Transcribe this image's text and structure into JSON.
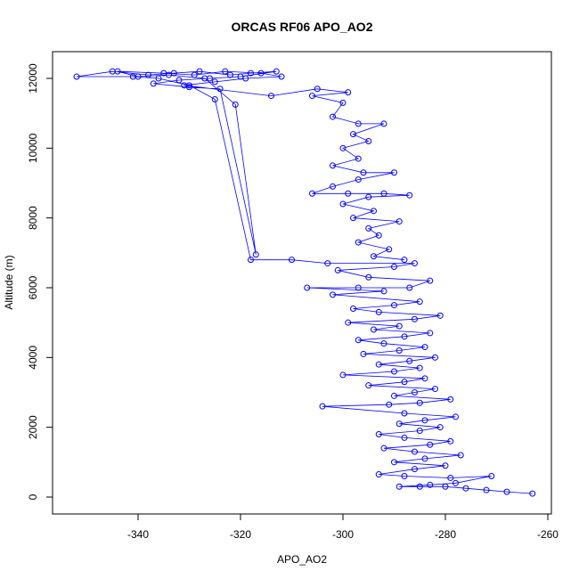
{
  "chart_data": {
    "type": "scatter",
    "mode": "points-and-lines",
    "title": "ORCAS RF06 APO_AO2",
    "x_label": "APO_AO2",
    "y_label": "Altitude (m)",
    "color": "#0000ff",
    "xlim": [
      -356.7,
      -259.3
    ],
    "ylim": [
      -485,
      12766
    ],
    "xticks": [
      -340,
      -320,
      -300,
      -280,
      -260
    ],
    "yticks": [
      0,
      2000,
      4000,
      6000,
      8000,
      10000,
      12000
    ],
    "x": [
      -263,
      -268,
      -272,
      -276,
      -280,
      -285,
      -289,
      -283,
      -278,
      -271,
      -279,
      -288,
      -293,
      -286,
      -280,
      -290,
      -284,
      -277,
      -286,
      -292,
      -283,
      -279,
      -288,
      -293,
      -285,
      -281,
      -289,
      -284,
      -278,
      -288,
      -304,
      -291,
      -285,
      -279,
      -290,
      -286,
      -282,
      -295,
      -288,
      -284,
      -300,
      -290,
      -285,
      -293,
      -287,
      -282,
      -296,
      -289,
      -284,
      -292,
      -297,
      -288,
      -283,
      -294,
      -289,
      -299,
      -286,
      -281,
      -293,
      -298,
      -290,
      -285,
      -302,
      -292,
      -307,
      -297,
      -287,
      -283,
      -295,
      -301,
      -290,
      -286,
      -303,
      -310,
      -318,
      -325,
      -330,
      -336,
      -341,
      -352,
      -345,
      -338,
      -333,
      -328,
      -322,
      -318,
      -313,
      -320,
      -326,
      -332,
      -337,
      -330,
      -324,
      -317,
      -321,
      -327,
      -334,
      -340,
      -344,
      -335,
      -329,
      -323,
      -316,
      -312,
      -319,
      -325,
      -331,
      -314,
      -305,
      -299,
      -306,
      -300,
      -302,
      -297,
      -292,
      -298,
      -295,
      -300,
      -297,
      -302,
      -296,
      -290,
      -297,
      -302,
      -306,
      -299,
      -292,
      -287,
      -295,
      -300,
      -294,
      -298,
      -289,
      -295,
      -293,
      -297,
      -291,
      -294,
      -288
    ],
    "values": [
      100,
      150,
      200,
      250,
      300,
      300,
      300,
      350,
      400,
      600,
      550,
      600,
      650,
      800,
      900,
      1000,
      1100,
      1200,
      1300,
      1400,
      1500,
      1600,
      1700,
      1800,
      1900,
      2000,
      2100,
      2200,
      2300,
      2400,
      2600,
      2650,
      2700,
      2800,
      2900,
      3000,
      3100,
      3200,
      3300,
      3400,
      3500,
      3600,
      3700,
      3800,
      3900,
      4000,
      4100,
      4200,
      4300,
      4400,
      4500,
      4600,
      4700,
      4800,
      4900,
      5000,
      5100,
      5200,
      5300,
      5400,
      5500,
      5600,
      5800,
      5900,
      6000,
      6000,
      6000,
      6200,
      6300,
      6500,
      6600,
      6700,
      6700,
      6800,
      6800,
      11400,
      11800,
      12000,
      12050,
      12050,
      12200,
      12100,
      12150,
      12200,
      12100,
      12150,
      12200,
      12050,
      12000,
      11950,
      11850,
      11750,
      11700,
      6950,
      11250,
      12000,
      12100,
      12050,
      12200,
      12150,
      12100,
      12200,
      12150,
      12050,
      12000,
      11900,
      11800,
      11500,
      11700,
      11600,
      11500,
      11300,
      10900,
      10700,
      10700,
      10400,
      10200,
      10000,
      9700,
      9500,
      9300,
      9300,
      9100,
      8900,
      8700,
      8700,
      8700,
      8650,
      8600,
      8400,
      8200,
      8000,
      7900,
      7700,
      7500,
      7300,
      7100,
      6900,
      6800
    ]
  }
}
